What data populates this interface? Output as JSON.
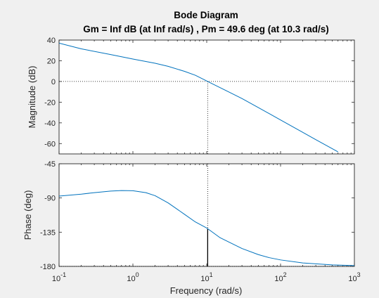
{
  "window": {
    "background": "#f0f0f0"
  },
  "chart_data": {
    "type": "line",
    "title": "Bode Diagram",
    "subtitle": "Gm = Inf dB (at Inf rad/s) ,  Pm = 49.6 deg (at 10.3 rad/s)",
    "xlabel": "Frequency  (rad/s)",
    "xscale": "log",
    "xlim": [
      0.1,
      1000
    ],
    "xticks": [
      {
        "value": 0.1,
        "base": "10",
        "exp": "-1"
      },
      {
        "value": 1,
        "base": "10",
        "exp": "0"
      },
      {
        "value": 10,
        "base": "10",
        "exp": "1"
      },
      {
        "value": 100,
        "base": "10",
        "exp": "2"
      },
      {
        "value": 1000,
        "base": "10",
        "exp": "3"
      }
    ],
    "line_color": "#0072bd",
    "marker_color": "#000000",
    "gain_crossover": {
      "frequency": 10.3,
      "phase_margin_deg": 49.6
    },
    "magnitude": {
      "ylabel": "Magnitude (dB)",
      "ylim": [
        -70,
        40
      ],
      "yticks": [
        40,
        20,
        0,
        -20,
        -40,
        -60
      ],
      "series": [
        {
          "x": [
            0.1,
            0.2,
            0.5,
            1,
            2,
            3,
            5,
            7,
            10,
            10.3,
            15,
            20,
            30,
            50,
            70,
            100,
            200,
            300,
            600
          ],
          "y": [
            37,
            31.5,
            26,
            21.7,
            17.6,
            14.6,
            9.8,
            6,
            0.5,
            0,
            -5.8,
            -10.2,
            -16.5,
            -25.2,
            -31,
            -37.2,
            -49.2,
            -56.2,
            -68
          ]
        }
      ]
    },
    "phase": {
      "ylabel": "Phase (deg)",
      "ylim": [
        -180,
        -45
      ],
      "yticks": [
        -45,
        -90,
        -135,
        -180
      ],
      "series": [
        {
          "x": [
            0.1,
            0.2,
            0.3,
            0.5,
            0.7,
            1,
            1.5,
            2,
            3,
            5,
            7,
            10,
            10.3,
            15,
            20,
            30,
            50,
            70,
            100,
            200,
            300,
            500,
            1000
          ],
          "y": [
            -87.5,
            -85,
            -83,
            -81,
            -80.3,
            -80.5,
            -83,
            -87,
            -96.5,
            -111.5,
            -121.5,
            -129.5,
            -130.4,
            -142,
            -148,
            -156.5,
            -164.5,
            -168.5,
            -171.5,
            -175.5,
            -176.7,
            -178,
            -179
          ]
        }
      ]
    }
  }
}
